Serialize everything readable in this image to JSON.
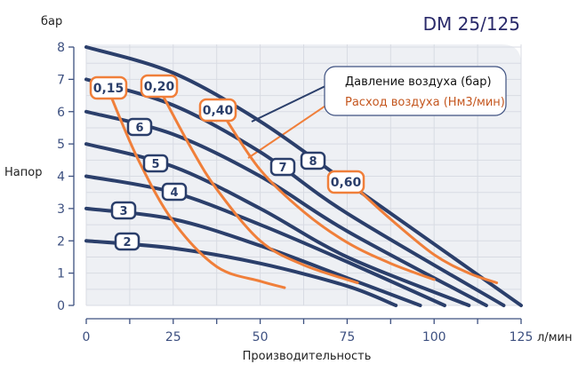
{
  "chart_data": {
    "type": "line",
    "title": "DM 25/125",
    "xlabel": "Производительность",
    "xunit": "л/мин",
    "ylabel": "Напор",
    "yunit": "бар",
    "xlim": [
      0,
      125
    ],
    "ylim": [
      0,
      8
    ],
    "xticks": [
      "0",
      "25",
      "50",
      "75",
      "100",
      "125"
    ],
    "yticks": [
      "0",
      "1",
      "2",
      "3",
      "4",
      "5",
      "6",
      "7",
      "8"
    ],
    "grid": true,
    "legend_position": "top-right",
    "legend": [
      {
        "label": "Давление воздуха (бар)",
        "color": "#2b3f6b"
      },
      {
        "label": "Расход воздуха (Нм3/мин)",
        "color": "#f07f3a"
      }
    ],
    "pressure_series": [
      {
        "label": "2",
        "points": [
          [
            0,
            2
          ],
          [
            25,
            1.77
          ],
          [
            50,
            1.3
          ],
          [
            75,
            0.6
          ],
          [
            89,
            0
          ]
        ]
      },
      {
        "label": "3",
        "points": [
          [
            0,
            3
          ],
          [
            25,
            2.67
          ],
          [
            50,
            1.85
          ],
          [
            75,
            0.85
          ],
          [
            96,
            0
          ]
        ]
      },
      {
        "label": "4",
        "points": [
          [
            0,
            4
          ],
          [
            25,
            3.5
          ],
          [
            50,
            2.5
          ],
          [
            75,
            1.35
          ],
          [
            103,
            0
          ]
        ]
      },
      {
        "label": "5",
        "points": [
          [
            0,
            5
          ],
          [
            25,
            4.3
          ],
          [
            50,
            3.0
          ],
          [
            75,
            1.5
          ],
          [
            110,
            0
          ]
        ]
      },
      {
        "label": "6",
        "points": [
          [
            0,
            6
          ],
          [
            25,
            5.3
          ],
          [
            50,
            4.0
          ],
          [
            75,
            2.3
          ],
          [
            115,
            0
          ]
        ]
      },
      {
        "label": "7",
        "points": [
          [
            0,
            7
          ],
          [
            25,
            6.2
          ],
          [
            50,
            4.75
          ],
          [
            75,
            2.85
          ],
          [
            120,
            0
          ]
        ]
      },
      {
        "label": "8",
        "points": [
          [
            0,
            8
          ],
          [
            25,
            7.2
          ],
          [
            50,
            5.7
          ],
          [
            75,
            3.8
          ],
          [
            100,
            1.9
          ],
          [
            125,
            0
          ]
        ]
      }
    ],
    "air_series": [
      {
        "label": "0,15",
        "points": [
          [
            7,
            6.5
          ],
          [
            15,
            4.5
          ],
          [
            25,
            2.6
          ],
          [
            37.5,
            1.2
          ],
          [
            50,
            0.75
          ],
          [
            57,
            0.55
          ]
        ]
      },
      {
        "label": "0,20",
        "points": [
          [
            22,
            6.5
          ],
          [
            30,
            4.9
          ],
          [
            37.5,
            3.6
          ],
          [
            50,
            2.0
          ],
          [
            62.5,
            1.25
          ],
          [
            78,
            0.7
          ]
        ]
      },
      {
        "label": "0,40",
        "points": [
          [
            40,
            5.8
          ],
          [
            50,
            4.2
          ],
          [
            62.5,
            2.9
          ],
          [
            75,
            1.95
          ],
          [
            87.5,
            1.3
          ],
          [
            100,
            0.8
          ]
        ]
      },
      {
        "label": "0,60",
        "points": [
          [
            78,
            3.6
          ],
          [
            87.5,
            2.67
          ],
          [
            100,
            1.57
          ],
          [
            110,
            1.0
          ],
          [
            118,
            0.7
          ]
        ]
      }
    ],
    "colors": {
      "pressure": "#2b3f6b",
      "air": "#f07f3a",
      "title": "#2a2a6a",
      "axis": "#3d5080",
      "plot_bg": "#eef0f4",
      "grid": "#d8dbe3"
    }
  }
}
